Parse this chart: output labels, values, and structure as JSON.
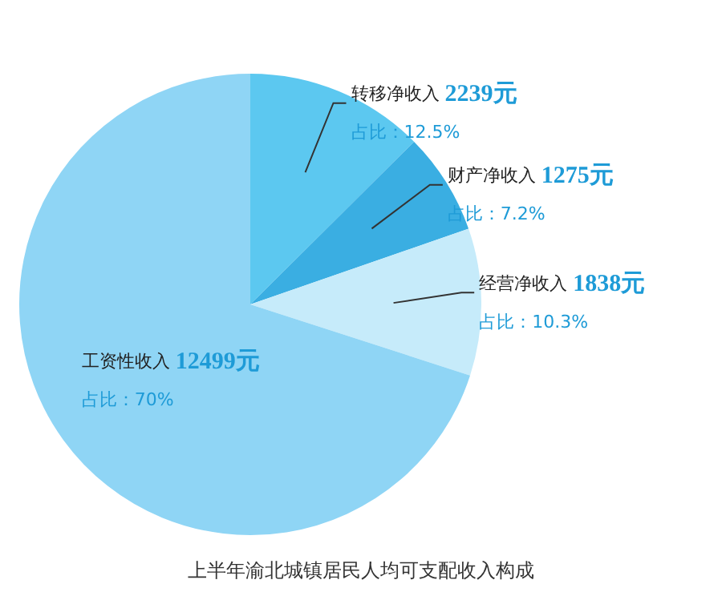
{
  "chart_data": {
    "type": "pie",
    "title": "上半年渝北城镇居民人均可支配收入构成",
    "categories": [
      "转移净收入",
      "财产净收入",
      "经营净收入",
      "工资性收入"
    ],
    "values": [
      2239,
      1275,
      1838,
      12499
    ],
    "value_labels": [
      "2239元",
      "1275元",
      "1838元",
      "12499元"
    ],
    "colors": [
      "#5cc8f0",
      "#3aaee2",
      "#c6ebfa",
      "#8fd5f5"
    ],
    "annotations": [
      "占比：12.5%",
      "占比：7.2%",
      "占比：10.3%",
      "占比：70%"
    ]
  }
}
